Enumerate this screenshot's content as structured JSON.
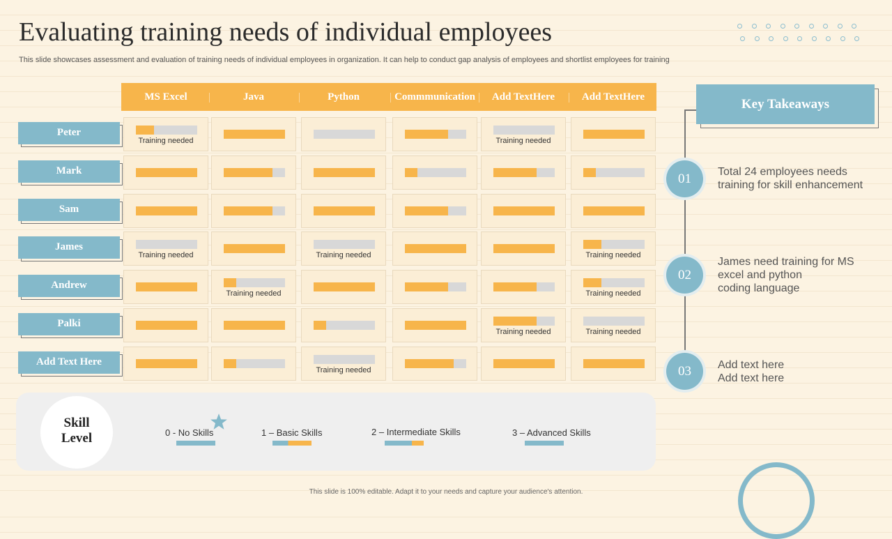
{
  "title": "Evaluating training needs of individual employees",
  "subtitle": "This slide showcases assessment and evaluation of training needs of individual employees in organization. It can help to conduct gap analysis of employees and shortlist employees for training",
  "columns": [
    "MS Excel",
    "Java",
    "Python",
    "Commmunication",
    "Add TextHere",
    "Add TextHere"
  ],
  "rows": [
    {
      "name": "Peter",
      "cells": [
        {
          "level": 0.3,
          "note": "Training needed"
        },
        {
          "level": 1.0,
          "note": ""
        },
        {
          "level": 0.0,
          "note": ""
        },
        {
          "level": 0.7,
          "note": ""
        },
        {
          "level": 0.0,
          "note": "Training needed"
        },
        {
          "level": 1.0,
          "note": ""
        }
      ]
    },
    {
      "name": "Mark",
      "cells": [
        {
          "level": 1.0,
          "note": ""
        },
        {
          "level": 0.8,
          "note": ""
        },
        {
          "level": 1.0,
          "note": ""
        },
        {
          "level": 0.2,
          "note": ""
        },
        {
          "level": 0.7,
          "note": ""
        },
        {
          "level": 0.2,
          "note": ""
        }
      ]
    },
    {
      "name": "Sam",
      "cells": [
        {
          "level": 1.0,
          "note": ""
        },
        {
          "level": 0.8,
          "note": ""
        },
        {
          "level": 1.0,
          "note": ""
        },
        {
          "level": 0.7,
          "note": ""
        },
        {
          "level": 1.0,
          "note": ""
        },
        {
          "level": 1.0,
          "note": ""
        }
      ]
    },
    {
      "name": "James",
      "cells": [
        {
          "level": 0.0,
          "note": "Training needed"
        },
        {
          "level": 1.0,
          "note": ""
        },
        {
          "level": 0.0,
          "note": "Training needed"
        },
        {
          "level": 1.0,
          "note": ""
        },
        {
          "level": 1.0,
          "note": ""
        },
        {
          "level": 0.3,
          "note": "Training needed"
        }
      ]
    },
    {
      "name": "Andrew",
      "cells": [
        {
          "level": 1.0,
          "note": ""
        },
        {
          "level": 0.2,
          "note": "Training needed"
        },
        {
          "level": 1.0,
          "note": ""
        },
        {
          "level": 0.7,
          "note": ""
        },
        {
          "level": 0.7,
          "note": ""
        },
        {
          "level": 0.3,
          "note": "Training needed"
        }
      ]
    },
    {
      "name": "Palki",
      "cells": [
        {
          "level": 1.0,
          "note": ""
        },
        {
          "level": 1.0,
          "note": ""
        },
        {
          "level": 0.2,
          "note": ""
        },
        {
          "level": 1.0,
          "note": ""
        },
        {
          "level": 0.7,
          "note": "Training needed"
        },
        {
          "level": 0.0,
          "note": "Training needed"
        }
      ]
    },
    {
      "name": "Add Text Here",
      "cells": [
        {
          "level": 1.0,
          "note": ""
        },
        {
          "level": 0.2,
          "note": ""
        },
        {
          "level": 0.0,
          "note": "Training needed"
        },
        {
          "level": 0.8,
          "note": ""
        },
        {
          "level": 1.0,
          "note": ""
        },
        {
          "level": 1.0,
          "note": ""
        }
      ]
    }
  ],
  "takeaways": {
    "title": "Key Takeaways",
    "items": [
      {
        "num": "01",
        "lines": [
          "Total 24 employees needs",
          "training for skill enhancement"
        ]
      },
      {
        "num": "02",
        "lines": [
          "James need training for MS",
          "excel and python",
          "coding language"
        ]
      },
      {
        "num": "03",
        "lines": [
          "Add text here",
          "Add text here"
        ]
      }
    ]
  },
  "legend": {
    "title_line1": "Skill",
    "title_line2": "Level",
    "items": [
      {
        "num": "0",
        "sep": " - ",
        "label": "No Skills",
        "orange_fraction": 0.0
      },
      {
        "num": "1",
        "sep": " – ",
        "label": "Basic Skills",
        "orange_fraction": 0.6
      },
      {
        "num": "2",
        "sep": " – ",
        "label": "Intermediate  Skills",
        "orange_fraction": 0.3
      },
      {
        "num": "3",
        "sep": " – ",
        "label": "Advanced  Skills",
        "orange_fraction": 0.0
      }
    ]
  },
  "footer": "This slide is 100% editable. Adapt it to your needs and capture your audience's attention.",
  "colors": {
    "orange": "#f7b54b",
    "blue": "#84b9ca",
    "gray_track": "#d8d8d8",
    "background": "#fcf3e2"
  }
}
